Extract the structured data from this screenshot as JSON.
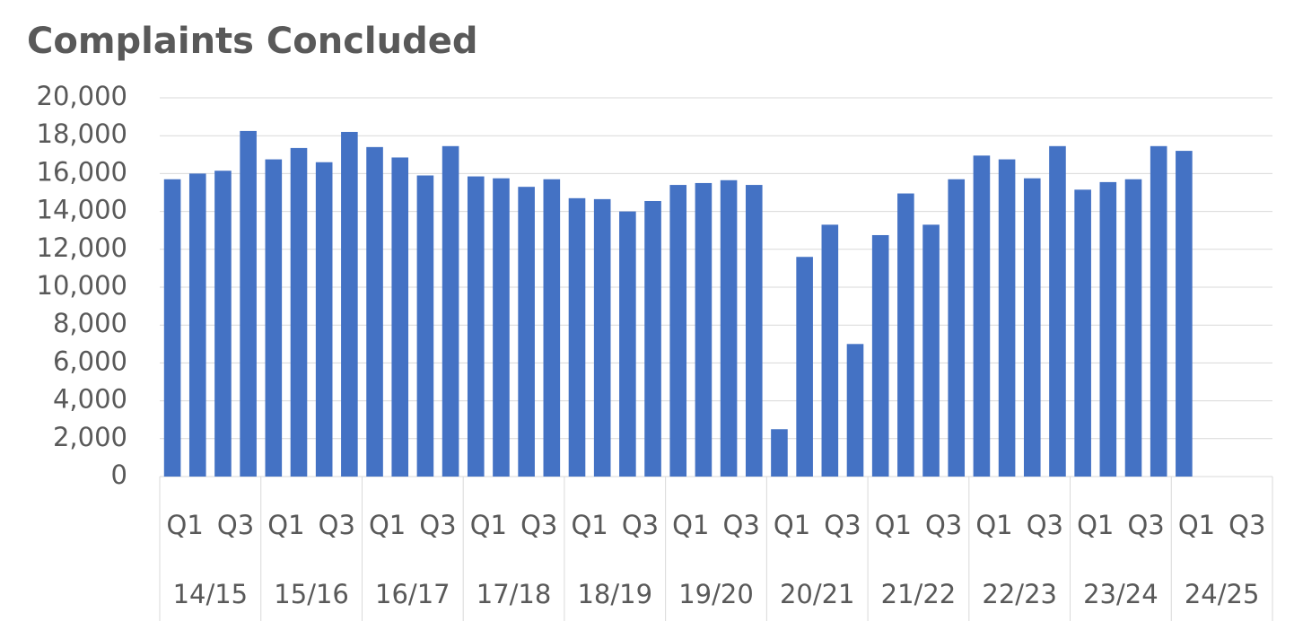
{
  "chart_data": {
    "type": "bar",
    "title": "Complaints Concluded",
    "categories": [
      "Q1",
      null,
      "Q3",
      null,
      "Q1",
      null,
      "Q3",
      null,
      "Q1",
      null,
      "Q3",
      null,
      "Q1",
      null,
      "Q3",
      null,
      "Q1",
      null,
      "Q3",
      null,
      "Q1",
      null,
      "Q3",
      null,
      "Q1",
      null,
      "Q3",
      null,
      "Q1",
      null,
      "Q3",
      null,
      "Q1",
      null,
      "Q3",
      null,
      "Q1",
      null,
      "Q3",
      null,
      "Q1",
      null,
      "Q3",
      null
    ],
    "groups": [
      "14/15",
      "15/16",
      "16/17",
      "17/18",
      "18/19",
      "19/20",
      "20/21",
      "21/22",
      "22/23",
      "23/24",
      "24/25"
    ],
    "values": [
      15700,
      16000,
      16150,
      18250,
      16750,
      17350,
      16600,
      18200,
      17400,
      16850,
      15900,
      17450,
      15850,
      15750,
      15300,
      15700,
      14700,
      14650,
      14000,
      14550,
      15400,
      15500,
      15650,
      15400,
      2500,
      11600,
      13300,
      7000,
      12750,
      14950,
      13300,
      15700,
      16950,
      16750,
      15750,
      17450,
      15150,
      15550,
      15700,
      17450,
      17200,
      null,
      null,
      null
    ],
    "color": "#4472c4",
    "ylim": [
      0,
      20000
    ],
    "yticks": [
      0,
      {
        "value": 2000,
        "label": "2,000"
      },
      {
        "value": 4000,
        "label": "4,000"
      },
      {
        "value": 6000,
        "label": "6,000"
      },
      {
        "value": 8000,
        "label": "8,000"
      },
      {
        "value": 10000,
        "label": "10,000"
      },
      {
        "value": 12000,
        "label": "12,000"
      },
      {
        "value": 14000,
        "label": "14,000"
      },
      {
        "value": 16000,
        "label": "16,000"
      },
      {
        "value": 18000,
        "label": "18,000"
      },
      {
        "value": 20000,
        "label": "20,000"
      }
    ],
    "grid": true
  }
}
